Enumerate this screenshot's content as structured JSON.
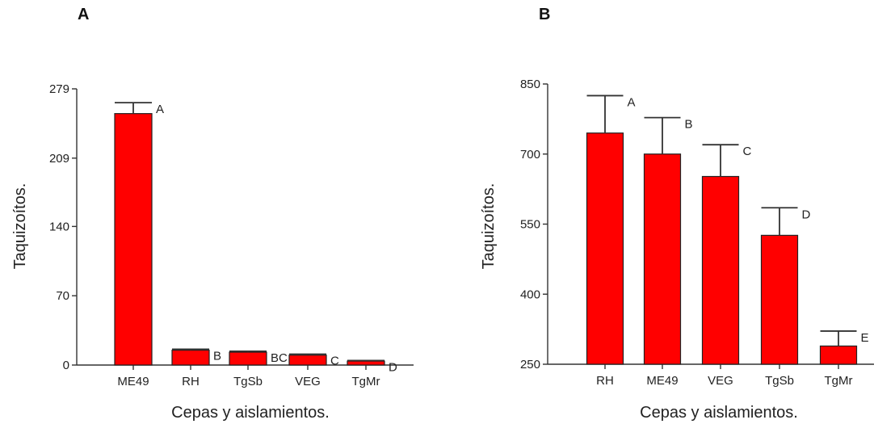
{
  "colors": {
    "bar_fill": "#ff0000",
    "bar_stroke": "#222222",
    "axis": "#333333",
    "text": "#222222"
  },
  "chart_data": [
    {
      "panel_label": "A",
      "type": "bar",
      "title": "",
      "xlabel": "Cepas y aislamientos.",
      "ylabel": "Taquizoítos.",
      "ylim": [
        0,
        279
      ],
      "yticks": [
        "279",
        "209",
        "140",
        "70",
        "0"
      ],
      "ytick_values": [
        279,
        209,
        140,
        70,
        0
      ],
      "categories": [
        "ME49",
        "RH",
        "TgSb",
        "VEG",
        "TgMr"
      ],
      "values": [
        254,
        15,
        13,
        10,
        4
      ],
      "error_upper": [
        265,
        16,
        14,
        11,
        4.6
      ],
      "significance": [
        "A",
        "B",
        "BC",
        "C",
        "D"
      ],
      "grid": false
    },
    {
      "panel_label": "B",
      "type": "bar",
      "title": "",
      "xlabel": "Cepas y aislamientos.",
      "ylabel": "Taquizoítos.",
      "ylim": [
        250,
        850
      ],
      "yticks": [
        "850",
        "700",
        "550",
        "400",
        "250"
      ],
      "ytick_values": [
        850,
        700,
        550,
        400,
        250
      ],
      "categories": [
        "RH",
        "ME49",
        "VEG",
        "TgSb",
        "TgMr"
      ],
      "values": [
        745,
        700,
        652,
        526,
        289
      ],
      "error_upper": [
        825,
        778,
        720,
        585,
        321
      ],
      "significance": [
        "A",
        "B",
        "C",
        "D",
        "E"
      ],
      "grid": false
    }
  ]
}
